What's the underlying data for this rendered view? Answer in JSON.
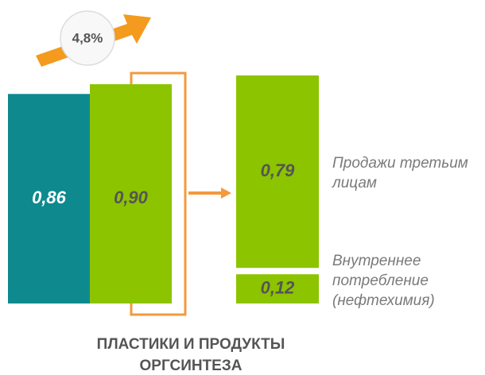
{
  "chart_data": {
    "type": "bar",
    "title": "ПЛАСТИКИ И ПРОДУКТЫ ОРГСИНТЕЗА",
    "ylim": [
      0,
      0.9
    ],
    "bars": {
      "values": [
        0.86,
        0.9
      ],
      "value_labels": [
        "0,86",
        "0,90"
      ],
      "colors": [
        "#0e8a8f",
        "#8cc400"
      ]
    },
    "breakdown": {
      "categories": [
        "Продажи третьим лицам",
        "Внутреннее потребление (нефтехимия)"
      ],
      "values": [
        0.79,
        0.12
      ],
      "value_labels": [
        "0,79",
        "0,12"
      ],
      "color": "#8cc400"
    },
    "growth": {
      "value": 4.8,
      "label": "4,8%"
    }
  }
}
